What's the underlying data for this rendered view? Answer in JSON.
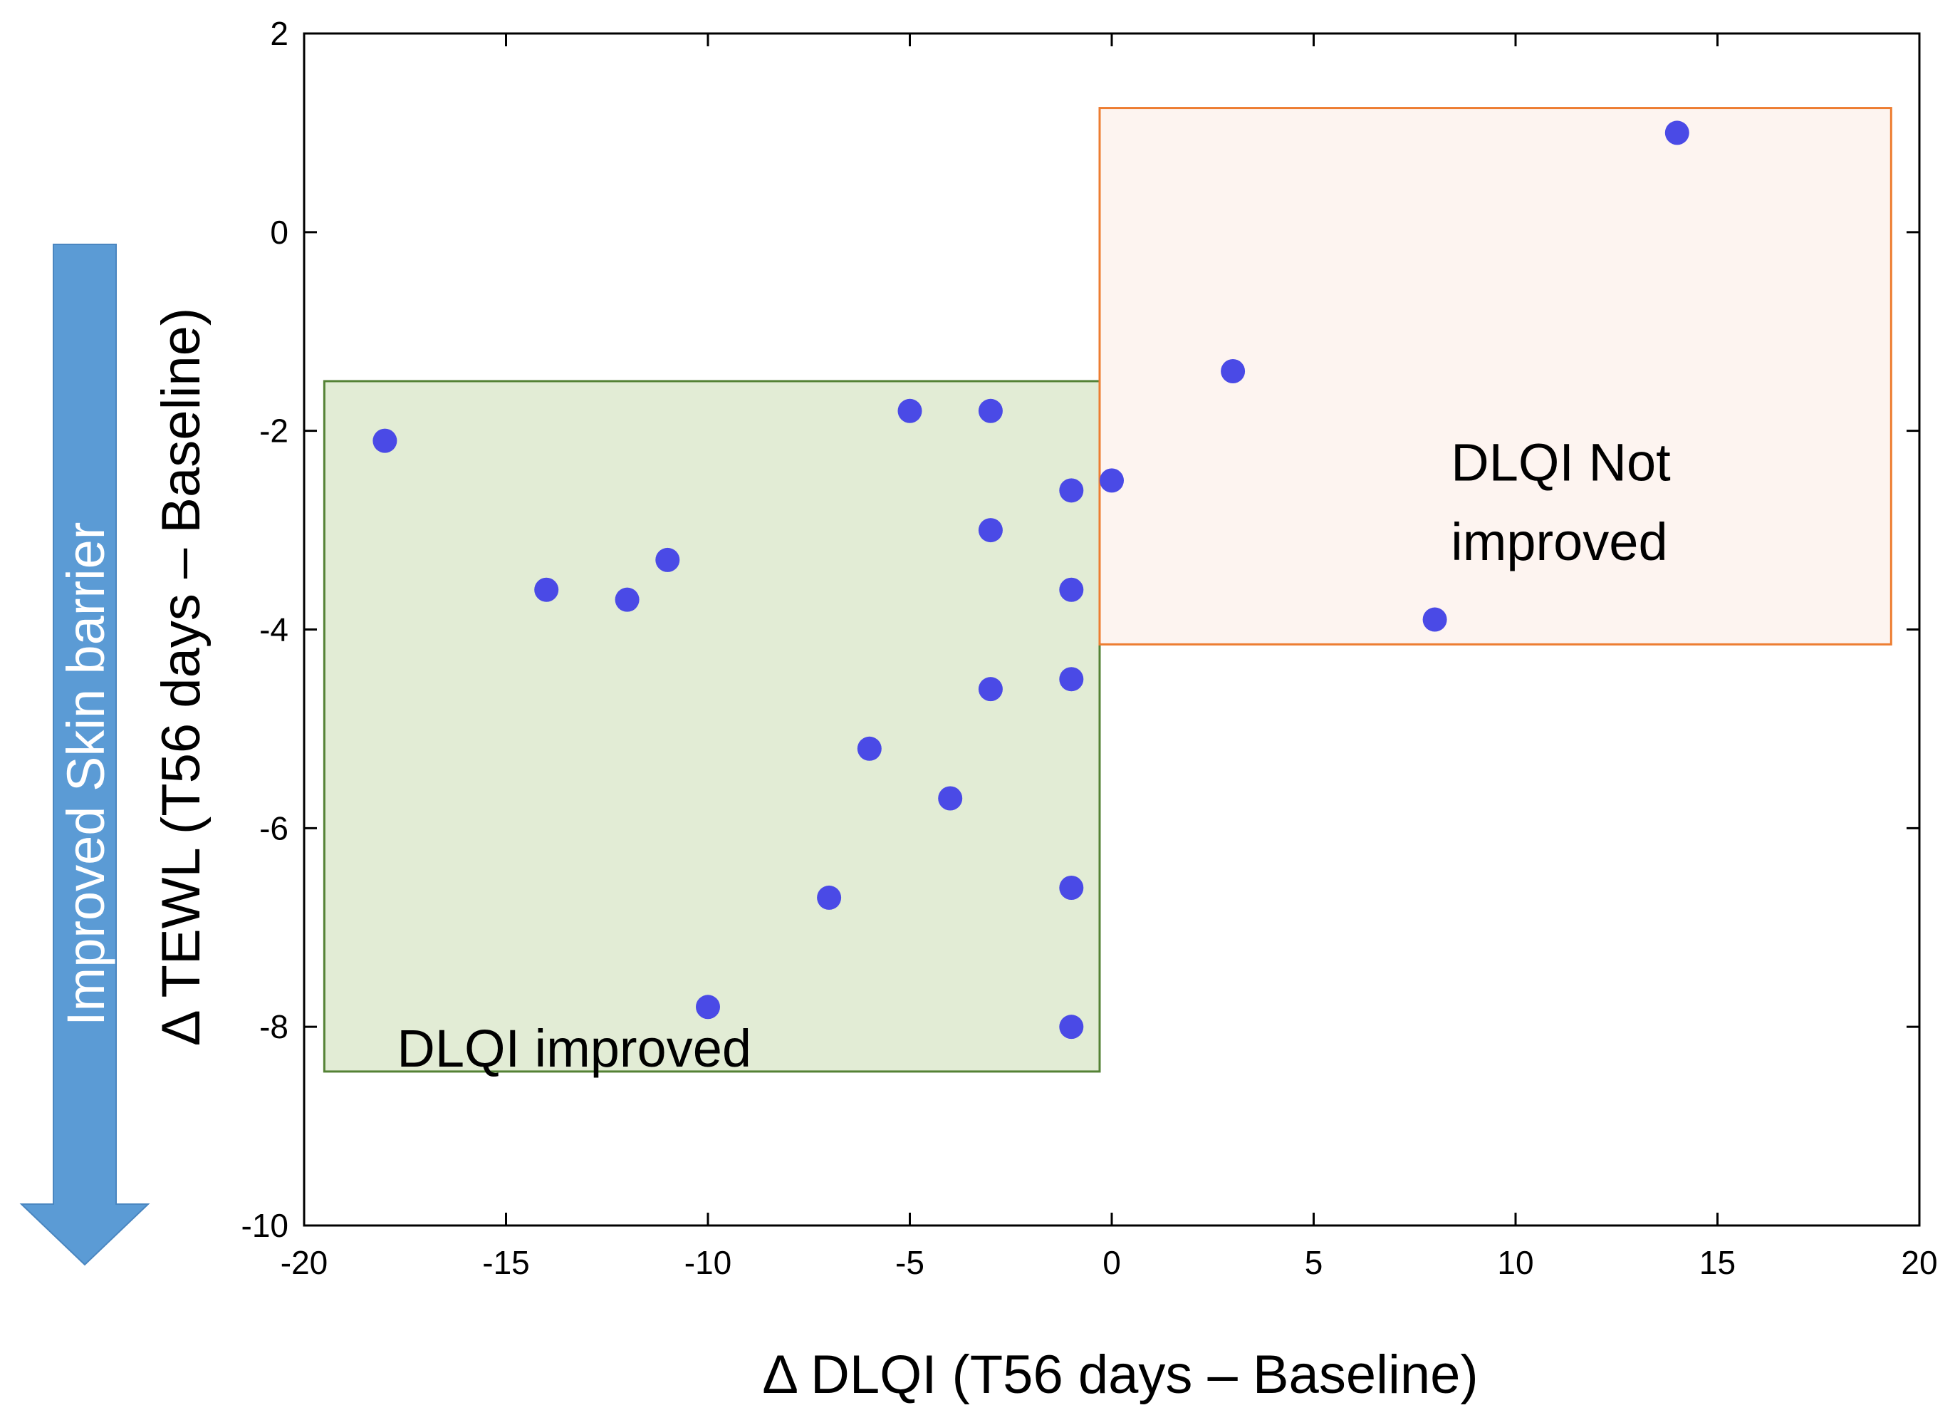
{
  "chart_data": {
    "type": "scatter",
    "xlabel": "Δ DLQI (T56 days – Baseline)",
    "ylabel": "Δ TEWL (T56 days – Baseline)",
    "xlim": [
      -20,
      20
    ],
    "ylim": [
      -10,
      2
    ],
    "xticks": [
      "-20",
      "-15",
      "-10",
      "-5",
      "0",
      "5",
      "10",
      "15",
      "20"
    ],
    "yticks": [
      "2",
      "0",
      "-2",
      "-4",
      "-6",
      "-8",
      "-10"
    ],
    "grid": false,
    "point_color": "#4a4ae6",
    "points": [
      {
        "x": -18,
        "y": -2.1
      },
      {
        "x": -14,
        "y": -3.6
      },
      {
        "x": -12,
        "y": -3.7
      },
      {
        "x": -11,
        "y": -3.3
      },
      {
        "x": -10,
        "y": -7.8
      },
      {
        "x": -7,
        "y": -6.7
      },
      {
        "x": -6,
        "y": -5.2
      },
      {
        "x": -5,
        "y": -1.8
      },
      {
        "x": -4,
        "y": -5.7
      },
      {
        "x": -3,
        "y": -1.8
      },
      {
        "x": -3,
        "y": -3.0
      },
      {
        "x": -3,
        "y": -4.6
      },
      {
        "x": -1,
        "y": -2.6
      },
      {
        "x": -1,
        "y": -3.6
      },
      {
        "x": -1,
        "y": -4.5
      },
      {
        "x": -1,
        "y": -6.6
      },
      {
        "x": -1,
        "y": -8.0
      },
      {
        "x": 0,
        "y": -2.5
      },
      {
        "x": 3,
        "y": -1.4
      },
      {
        "x": 8,
        "y": -3.9
      },
      {
        "x": 14,
        "y": 1.0
      }
    ],
    "regions": [
      {
        "label": "DLQI improved",
        "x_range": [
          -19.5,
          -0.3
        ],
        "y_range": [
          -8.45,
          -1.5
        ],
        "fill": "#e2ecd5",
        "stroke": "#548235"
      },
      {
        "label_lines": [
          "DLQI Not",
          "improved"
        ],
        "x_range": [
          -0.3,
          19.3
        ],
        "y_range": [
          -4.15,
          1.25
        ],
        "fill": "#fdf4f0",
        "stroke": "#ed7d31"
      }
    ],
    "side_arrow": {
      "label": "Improved Skin barrier",
      "color": "#5b9bd5",
      "direction": "down"
    }
  }
}
